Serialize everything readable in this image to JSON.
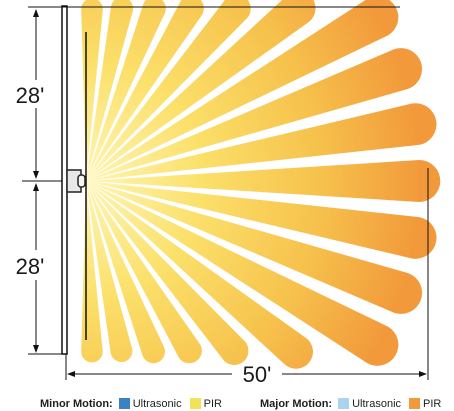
{
  "dimensions": {
    "upper_height": "28'",
    "lower_height": "28'",
    "width": "50'"
  },
  "legend": {
    "minor": {
      "heading": "Minor Motion:",
      "items": [
        {
          "label": "Ultrasonic",
          "color": "#3b82c4"
        },
        {
          "label": "PIR",
          "color": "#f6e05a"
        }
      ]
    },
    "major": {
      "heading": "Major Motion:",
      "items": [
        {
          "label": "Ultrasonic",
          "color": "#a9d3ee"
        },
        {
          "label": "PIR",
          "color": "#f29a3b"
        }
      ]
    }
  },
  "colors": {
    "beam_inner": "#fbee8f",
    "beam_mid": "#f6cf4e",
    "beam_outer": "#f29a3b",
    "line": "#111111"
  }
}
